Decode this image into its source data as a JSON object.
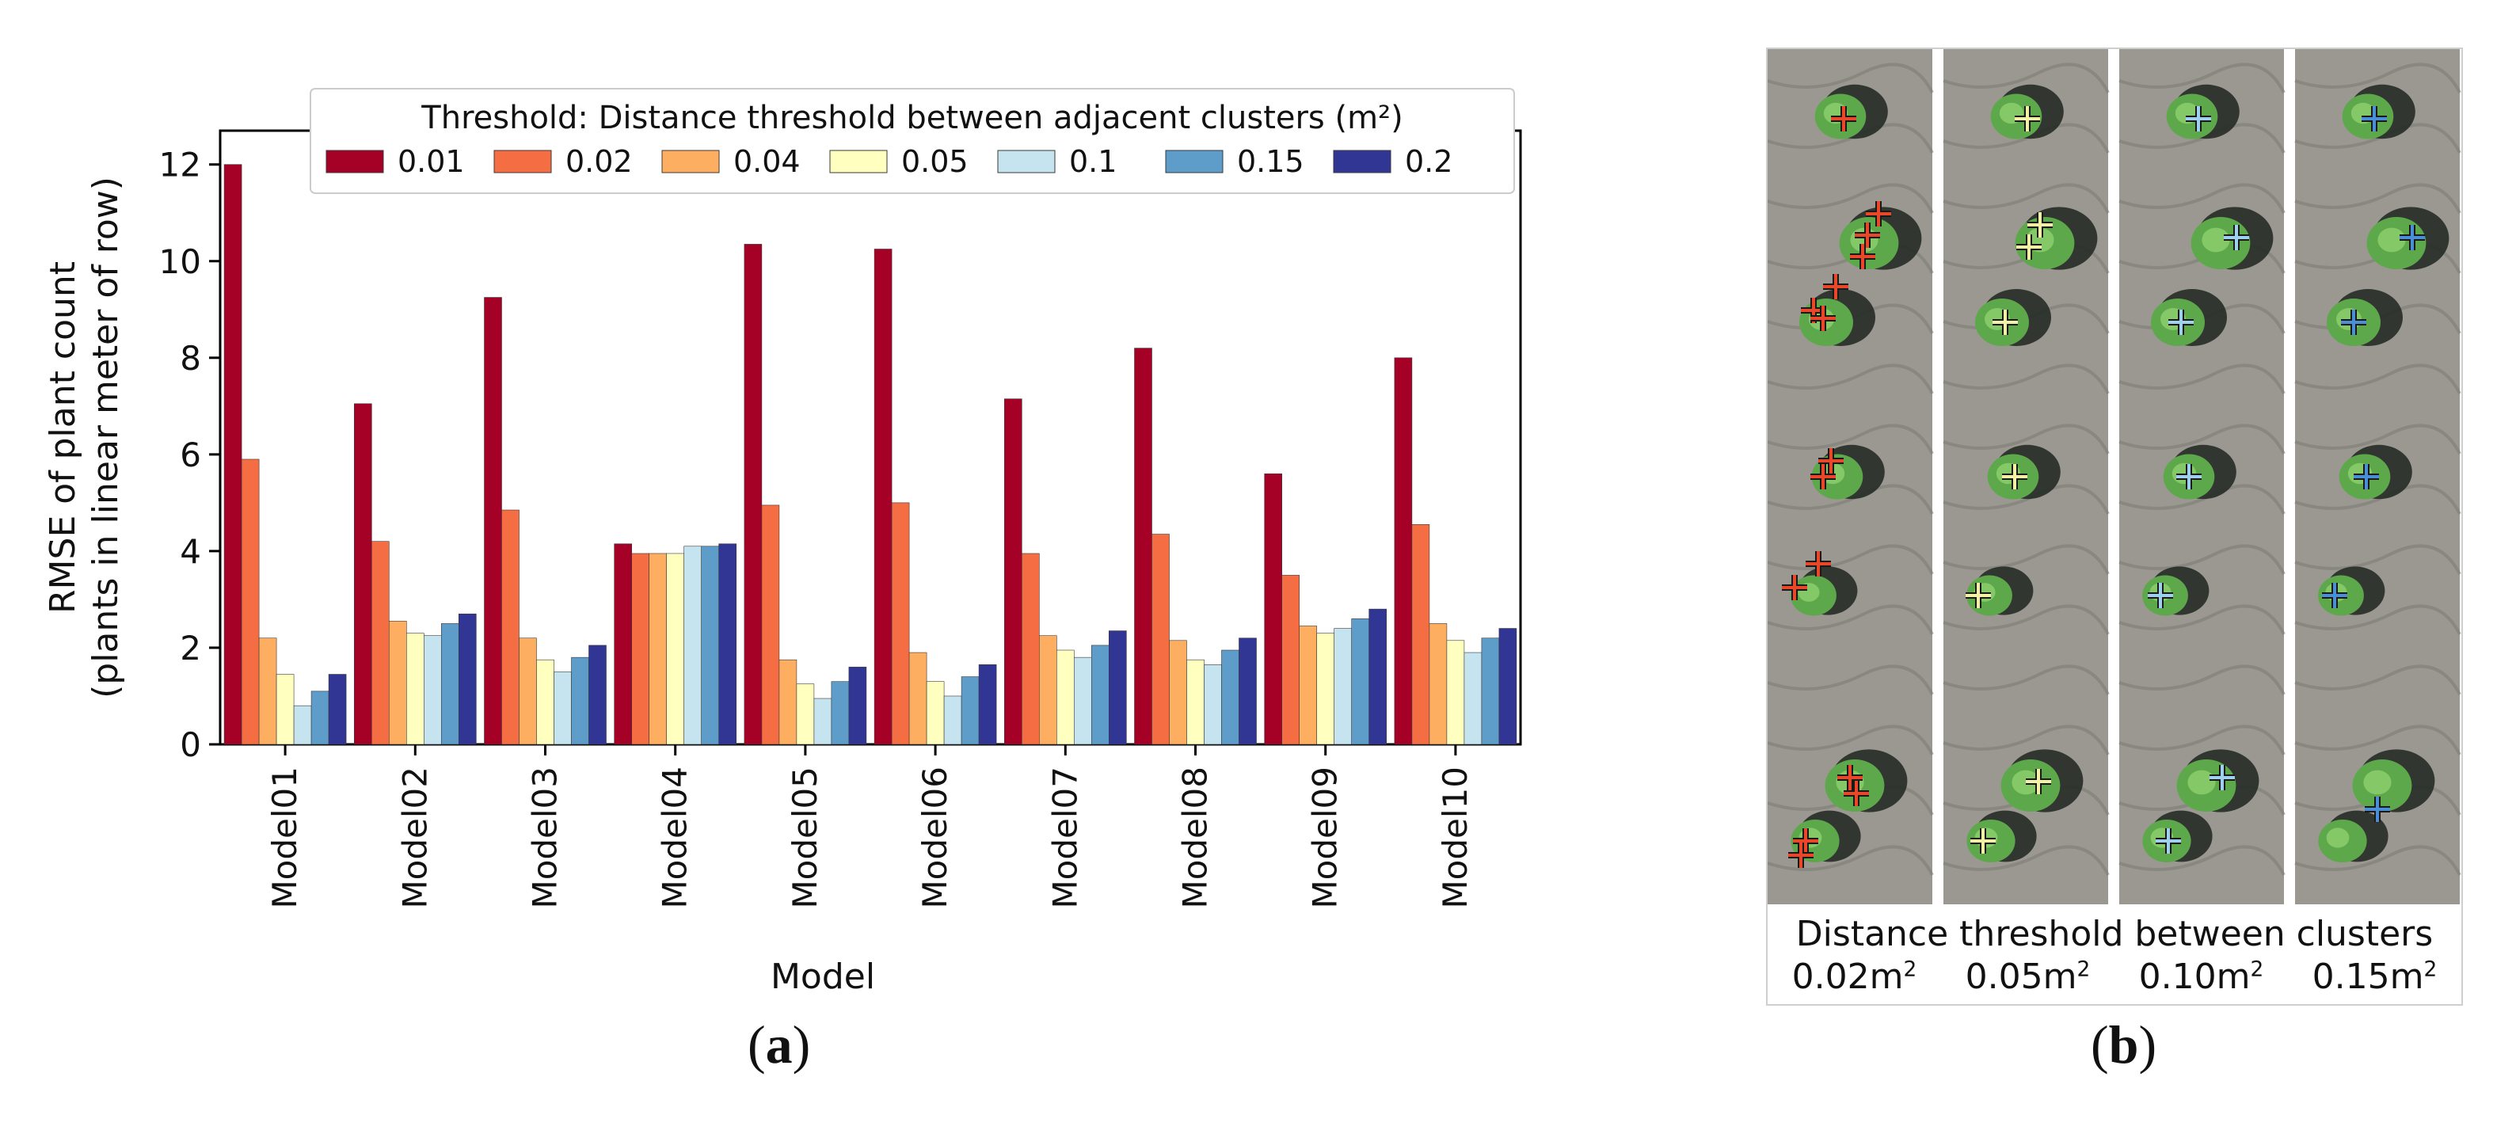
{
  "chart_data": {
    "type": "bar",
    "xlabel": "Model",
    "ylabel_line1": "RMSE of plant count",
    "ylabel_line2": "(plants in linear meter of row)",
    "ylim": [
      0,
      12.7
    ],
    "yticks": [
      "0",
      "2",
      "4",
      "6",
      "8",
      "10",
      "12"
    ],
    "categories": [
      "Model01",
      "Model02",
      "Model03",
      "Model04",
      "Model05",
      "Model06",
      "Model07",
      "Model08",
      "Model09",
      "Model10"
    ],
    "legend_title": "Threshold: Distance threshold between adjacent clusters (m²)",
    "legend_position": "top-right",
    "series": [
      {
        "name": "0.01",
        "color": "#a50026",
        "values": [
          12.0,
          7.05,
          9.25,
          4.15,
          10.35,
          10.25,
          7.15,
          8.2,
          5.6,
          8.0
        ]
      },
      {
        "name": "0.02",
        "color": "#f46d43",
        "values": [
          5.9,
          4.2,
          4.85,
          3.95,
          4.95,
          5.0,
          3.95,
          4.35,
          3.5,
          4.55
        ]
      },
      {
        "name": "0.04",
        "color": "#fdae61",
        "values": [
          2.2,
          2.55,
          2.2,
          3.95,
          1.75,
          1.9,
          2.25,
          2.15,
          2.45,
          2.5
        ]
      },
      {
        "name": "0.05",
        "color": "#ffffbf",
        "values": [
          1.45,
          2.3,
          1.75,
          3.95,
          1.25,
          1.3,
          1.95,
          1.75,
          2.3,
          2.15
        ]
      },
      {
        "name": "0.1",
        "color": "#c6e4f0",
        "values": [
          0.8,
          2.25,
          1.5,
          4.1,
          0.95,
          1.0,
          1.8,
          1.65,
          2.4,
          1.9
        ]
      },
      {
        "name": "0.15",
        "color": "#5e9cc9",
        "values": [
          1.1,
          2.5,
          1.8,
          4.1,
          1.3,
          1.4,
          2.05,
          1.95,
          2.6,
          2.2
        ]
      },
      {
        "name": "0.2",
        "color": "#313695",
        "values": [
          1.45,
          2.7,
          2.05,
          4.15,
          1.6,
          1.65,
          2.35,
          2.2,
          2.8,
          2.4
        ]
      }
    ]
  },
  "panel_a_label": "a",
  "panel_b_label": "b",
  "photo_panel": {
    "caption_line1": "Distance threshold between clusters",
    "thresholds": [
      "0.02m",
      "0.05m",
      "0.10m",
      "0.15m"
    ],
    "superscript": "2",
    "marker_colors": [
      "#e8472a",
      "#f3f0a8",
      "#9fd0ee",
      "#4a8fd6"
    ]
  }
}
